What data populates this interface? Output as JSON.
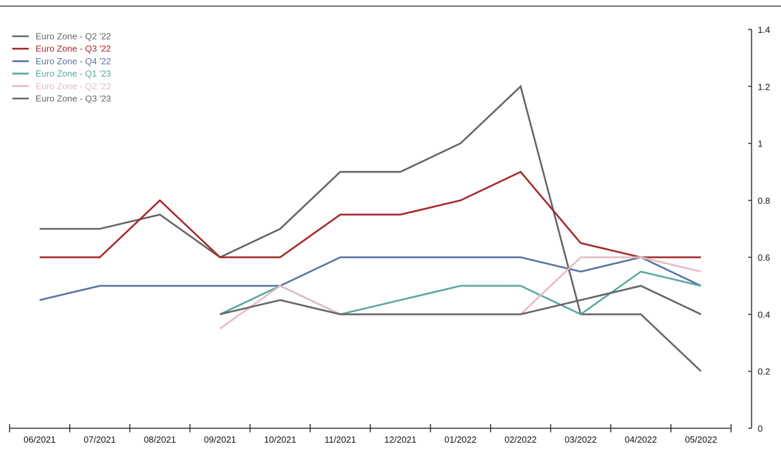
{
  "chart_data": {
    "type": "line",
    "title": "",
    "xlabel": "",
    "ylabel": "",
    "categories": [
      "06/2021",
      "07/2021",
      "08/2021",
      "09/2021",
      "10/2021",
      "11/2021",
      "12/2021",
      "01/2022",
      "02/2022",
      "03/2022",
      "04/2022",
      "05/2022"
    ],
    "y_ticks": [
      "0",
      "0.2",
      "0.4",
      "0.6",
      "0.8",
      "1",
      "1.2",
      "1.4"
    ],
    "ylim": [
      0,
      1.4
    ],
    "y_axis_side": "right",
    "grid": false,
    "legend_position": "top-left",
    "series": [
      {
        "name": "Euro Zone - Q2 '22",
        "color": "#666666",
        "values": [
          0.7,
          0.7,
          0.75,
          0.6,
          0.7,
          0.9,
          0.9,
          1.0,
          1.2,
          0.4,
          0.4,
          0.2
        ]
      },
      {
        "name": "Euro Zone - Q3 '22",
        "color": "#a52a2a",
        "values": [
          0.6,
          0.6,
          0.8,
          0.6,
          0.6,
          0.75,
          0.75,
          0.8,
          0.9,
          0.65,
          0.6,
          0.6
        ]
      },
      {
        "name": "Euro Zone - Q4 '22",
        "color": "#5b74a6",
        "values": [
          0.45,
          0.5,
          0.5,
          0.5,
          0.5,
          0.6,
          0.6,
          0.6,
          0.6,
          0.55,
          0.6,
          0.5
        ]
      },
      {
        "name": "Euro Zone - Q1 '23",
        "color": "#5aa8a1",
        "values": [
          null,
          null,
          null,
          0.4,
          0.5,
          0.4,
          0.45,
          0.5,
          0.5,
          0.4,
          0.55,
          0.5
        ]
      },
      {
        "name": "Euro Zone - Q2 '23",
        "color": "#e5bcc2",
        "values": [
          null,
          null,
          null,
          0.35,
          0.5,
          0.4,
          null,
          null,
          0.4,
          0.6,
          0.6,
          0.55
        ]
      },
      {
        "name": "Euro Zone - Q3 '23",
        "color": "#666666",
        "values": [
          null,
          null,
          null,
          0.4,
          0.45,
          0.4,
          0.4,
          0.4,
          0.4,
          0.45,
          0.5,
          0.4
        ]
      }
    ]
  }
}
